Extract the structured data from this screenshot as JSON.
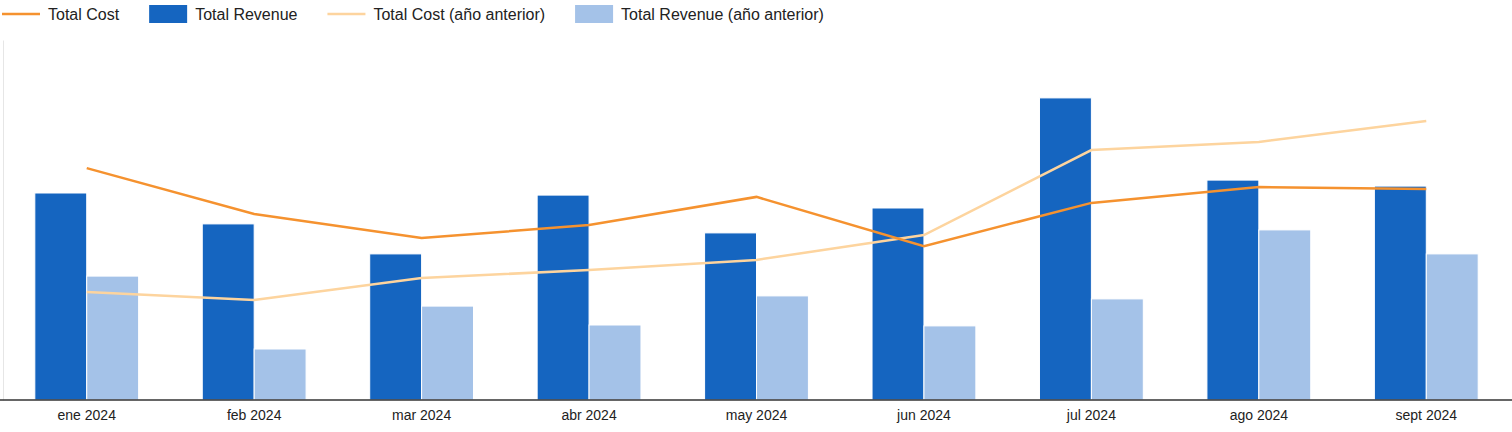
{
  "chart_data": {
    "type": "bar",
    "categories": [
      "ene 2024",
      "feb 2024",
      "mar 2024",
      "abr 2024",
      "may 2024",
      "jun 2024",
      "jul 2024",
      "ago 2024",
      "sept 2024"
    ],
    "series": [
      {
        "name": "Total Cost",
        "type": "line",
        "color": "#f5922f",
        "values": [
          77.3,
          62,
          54,
          58.3,
          67.7,
          51.3,
          65.7,
          71,
          70.3
        ]
      },
      {
        "name": "Total Revenue",
        "type": "bar",
        "color": "#1565c0",
        "values": [
          69,
          58.7,
          48.7,
          68.3,
          55.7,
          64,
          100.7,
          73.3,
          71.3
        ]
      },
      {
        "name": "Total Cost (año anterior)",
        "type": "line",
        "color": "#fdd49e",
        "values": [
          36,
          33.3,
          40.7,
          43.3,
          46.7,
          55,
          83.3,
          86,
          93
        ]
      },
      {
        "name": "Total Revenue (año anterior)",
        "type": "bar",
        "color": "#a4c2e8",
        "values": [
          41.3,
          17,
          31.3,
          25,
          34.7,
          24.7,
          33.7,
          56.7,
          48.7
        ]
      }
    ],
    "ylim": [
      0,
      120
    ],
    "yticks": [
      0,
      120
    ],
    "grid": false,
    "tick_labels": "x",
    "legend": "top-left"
  }
}
